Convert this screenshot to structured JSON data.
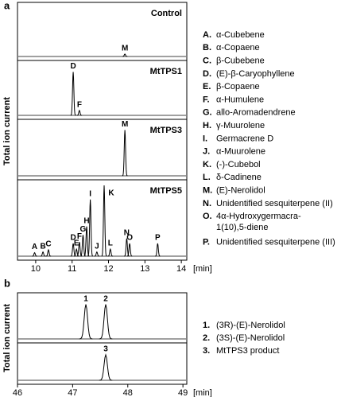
{
  "chart_data": [
    {
      "type": "peaks",
      "label": "a",
      "y_label": "Total ion current",
      "x_unit": "[min]",
      "xlim": [
        9.5,
        14.15
      ],
      "xticks": [
        10,
        11,
        12,
        13,
        14
      ],
      "ylim": [
        0,
        100
      ],
      "panels": [
        {
          "title": "Control",
          "peaks": [
            {
              "label": "M",
              "x": 12.45,
              "height": 5
            }
          ]
        },
        {
          "title": "MtTPS1",
          "peaks": [
            {
              "label": "D",
              "x": 11.03,
              "height": 88
            },
            {
              "label": "F",
              "x": 11.2,
              "height": 10
            }
          ]
        },
        {
          "title": "MtTPS3",
          "peaks": [
            {
              "label": "M",
              "x": 12.45,
              "height": 90
            }
          ]
        },
        {
          "title": "MtTPS5",
          "peaks": [
            {
              "label": "A",
              "x": 9.97,
              "height": 5
            },
            {
              "label": "B",
              "x": 10.2,
              "height": 6
            },
            {
              "label": "C",
              "x": 10.35,
              "height": 9
            },
            {
              "label": "D",
              "x": 11.03,
              "height": 18
            },
            {
              "label": "E",
              "x": 11.12,
              "height": 10
            },
            {
              "label": "F",
              "x": 11.2,
              "height": 20
            },
            {
              "label": "G",
              "x": 11.3,
              "height": 30
            },
            {
              "label": "H",
              "x": 11.4,
              "height": 42
            },
            {
              "label": "I",
              "x": 11.5,
              "height": 80
            },
            {
              "label": "J",
              "x": 11.68,
              "height": 6
            },
            {
              "label": "K",
              "x": 11.88,
              "height": 100
            },
            {
              "label": "L",
              "x": 12.05,
              "height": 10
            },
            {
              "label": "N",
              "x": 12.5,
              "height": 25
            },
            {
              "label": "O",
              "x": 12.58,
              "height": 18
            },
            {
              "label": "P",
              "x": 13.35,
              "height": 18
            }
          ]
        }
      ],
      "legend": [
        {
          "key": "A.",
          "name": [
            "α-Cubebene"
          ]
        },
        {
          "key": "B.",
          "name": [
            "α-Copaene"
          ]
        },
        {
          "key": "C.",
          "name": [
            "β-Cubebene"
          ]
        },
        {
          "key": "D.",
          "name": [
            "(E)-β-Caryophyllene"
          ]
        },
        {
          "key": "E.",
          "name": [
            "β-Copaene"
          ]
        },
        {
          "key": "F.",
          "name": [
            "α-Humulene"
          ]
        },
        {
          "key": "G.",
          "name": [
            "allo-Aromadendrene"
          ]
        },
        {
          "key": "H.",
          "name": [
            "γ-Muurolene"
          ]
        },
        {
          "key": "I.",
          "name": [
            "Germacrene D"
          ]
        },
        {
          "key": "J.",
          "name": [
            "α-Muurolene"
          ]
        },
        {
          "key": "K.",
          "name": [
            "(-)-Cubebol"
          ]
        },
        {
          "key": "L.",
          "name": [
            "δ-Cadinene"
          ]
        },
        {
          "key": "M.",
          "name": [
            "(E)-Nerolidol"
          ]
        },
        {
          "key": "N.",
          "name": [
            "Unidentified sesquiterpene (II)"
          ]
        },
        {
          "key": "O.",
          "name": [
            "4α-Hydroxygermacra-",
            "1(10),5-diene"
          ]
        },
        {
          "key": "P.",
          "name": [
            "Unidentified sesquiterpene (III)"
          ]
        }
      ]
    },
    {
      "type": "peaks",
      "label": "b",
      "y_label": "Total ion current",
      "x_unit": "[min]",
      "xlim": [
        46,
        49.07
      ],
      "xticks": [
        46,
        47,
        48,
        49
      ],
      "ylim": [
        0,
        100
      ],
      "panels": [
        {
          "peaks": [
            {
              "label": "1",
              "x": 47.24,
              "height": 85
            },
            {
              "label": "2",
              "x": 47.6,
              "height": 85
            }
          ]
        },
        {
          "peaks": [
            {
              "label": "3",
              "x": 47.6,
              "height": 80
            }
          ]
        }
      ],
      "legend": [
        {
          "key": "1.",
          "name": [
            "(3R)-(E)-Nerolidol"
          ]
        },
        {
          "key": "2.",
          "name": [
            "(3S)-(E)-Nerolidol"
          ]
        },
        {
          "key": "3.",
          "name": [
            "MtTPS3 product"
          ]
        }
      ]
    }
  ]
}
